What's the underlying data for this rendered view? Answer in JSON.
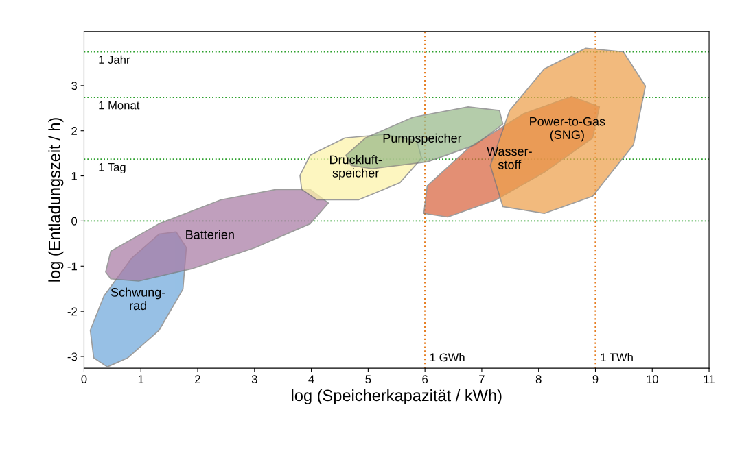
{
  "chart_data": {
    "type": "area",
    "xlabel": "log (Speicherkapazität / kWh)",
    "ylabel": "log (Entladungszeit / h)",
    "xlim": [
      0,
      11
    ],
    "xticks": [
      0,
      1,
      2,
      3,
      4,
      5,
      6,
      7,
      8,
      9,
      10,
      11
    ],
    "ylim": [
      -3.26,
      4.2
    ],
    "yticks": [
      -3,
      -2,
      -1,
      0,
      1,
      2,
      3
    ],
    "grid": false,
    "legend": false,
    "marker": "none",
    "series": [
      {
        "name": "Schwung-\nrad",
        "color": "#6fa8dc",
        "x": [
          0.17,
          0.11,
          0.35,
          0.84,
          1.32,
          1.62,
          1.8,
          1.74,
          1.32,
          0.77,
          0.41
        ],
        "values": [
          -3.03,
          -2.42,
          -1.66,
          -0.82,
          -0.29,
          -0.24,
          -0.59,
          -1.51,
          -2.42,
          -3.03,
          -3.23
        ]
      },
      {
        "name": "Batterien",
        "color": "#a97ba5",
        "x": [
          0.38,
          0.47,
          1.32,
          2.41,
          3.38,
          3.98,
          4.3,
          3.98,
          3.01,
          1.92,
          0.96,
          0.47
        ],
        "values": [
          -1.13,
          -0.67,
          -0.06,
          0.47,
          0.7,
          0.7,
          0.4,
          -0.06,
          -0.59,
          -1.05,
          -1.33,
          -1.28
        ]
      },
      {
        "name": "Druckluft-\nspeicher",
        "color": "#fdf3a8",
        "x": [
          3.8,
          3.98,
          4.59,
          5.31,
          5.86,
          5.94,
          5.56,
          4.83,
          4.1,
          3.83
        ],
        "values": [
          1.01,
          1.46,
          1.84,
          1.92,
          1.77,
          1.39,
          0.85,
          0.47,
          0.47,
          0.7
        ]
      },
      {
        "name": "Pumpspeicher",
        "color": "#98b98a",
        "x": [
          4.61,
          4.95,
          5.79,
          6.76,
          7.31,
          7.37,
          6.89,
          6.04,
          5.07,
          4.7
        ],
        "values": [
          1.46,
          1.84,
          2.3,
          2.53,
          2.45,
          2.15,
          1.69,
          1.31,
          1.16,
          1.23
        ]
      },
      {
        "name": "Wasser-\nstoff",
        "color": "#d9653f",
        "x": [
          5.98,
          6.04,
          6.77,
          7.74,
          8.58,
          9.07,
          8.95,
          8.1,
          7.25,
          6.4
        ],
        "values": [
          0.17,
          0.78,
          1.62,
          2.38,
          2.76,
          2.53,
          1.84,
          1.08,
          0.47,
          0.09
        ]
      },
      {
        "name": "Power-to-Gas\n(SNG)",
        "color": "#eea04c",
        "x": [
          7.15,
          7.49,
          8.1,
          8.83,
          9.49,
          9.88,
          9.67,
          8.95,
          8.1,
          7.37
        ],
        "values": [
          1.23,
          2.45,
          3.37,
          3.83,
          3.75,
          2.99,
          1.69,
          0.55,
          0.17,
          0.32
        ]
      }
    ],
    "ref_lines": [
      {
        "axis": "y",
        "value": 3.75,
        "label": "1 Jahr",
        "color": "#2ca02c",
        "line_style": "dotted"
      },
      {
        "axis": "y",
        "value": 2.74,
        "label": "1 Monat",
        "color": "#2ca02c",
        "line_style": "dotted"
      },
      {
        "axis": "y",
        "value": 1.37,
        "label": "1 Tag",
        "color": "#2ca02c",
        "line_style": "dotted"
      },
      {
        "axis": "y",
        "value": 0,
        "color": "#2ca02c",
        "line_style": "dotted"
      },
      {
        "axis": "x",
        "value": 6,
        "label": "1 GWh",
        "color": "#e67e22",
        "line_style": "dotted"
      },
      {
        "axis": "x",
        "value": 9,
        "label": "1 TWh",
        "color": "#e67e22",
        "line_style": "dotted"
      }
    ]
  }
}
